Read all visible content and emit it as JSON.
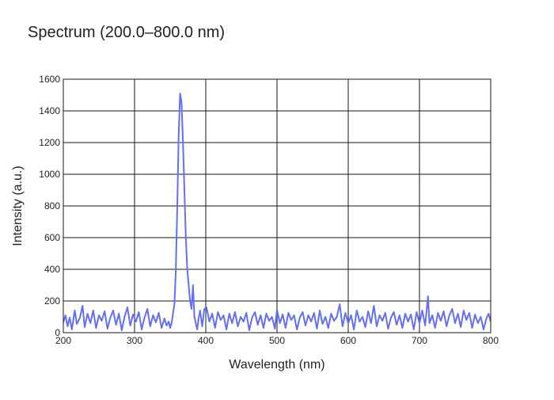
{
  "chart_data": {
    "type": "line",
    "title": "Spectrum (200.0–800.0 nm)",
    "xlabel": "Wavelength (nm)",
    "ylabel": "Intensity (a.u.)",
    "xlim": [
      200,
      800
    ],
    "ylim": [
      0,
      1600
    ],
    "x_ticks": [
      200,
      300,
      400,
      500,
      600,
      700,
      800
    ],
    "y_ticks": [
      0,
      200,
      400,
      600,
      800,
      1000,
      1200,
      1400,
      1600
    ],
    "grid": true,
    "legend": "none",
    "series": [
      {
        "color": "#636efa",
        "points": [
          [
            200,
            65
          ],
          [
            203,
            110
          ],
          [
            206,
            40
          ],
          [
            209,
            95
          ],
          [
            212,
            20
          ],
          [
            216,
            140
          ],
          [
            219,
            55
          ],
          [
            223,
            90
          ],
          [
            227,
            170
          ],
          [
            230,
            35
          ],
          [
            234,
            120
          ],
          [
            238,
            60
          ],
          [
            242,
            140
          ],
          [
            246,
            30
          ],
          [
            250,
            110
          ],
          [
            254,
            75
          ],
          [
            258,
            135
          ],
          [
            262,
            25
          ],
          [
            266,
            95
          ],
          [
            270,
            140
          ],
          [
            274,
            50
          ],
          [
            278,
            120
          ],
          [
            282,
            15
          ],
          [
            286,
            100
          ],
          [
            290,
            160
          ],
          [
            294,
            45
          ],
          [
            298,
            115
          ],
          [
            302,
            70
          ],
          [
            306,
            130
          ],
          [
            310,
            20
          ],
          [
            314,
            95
          ],
          [
            318,
            150
          ],
          [
            322,
            40
          ],
          [
            326,
            110
          ],
          [
            330,
            65
          ],
          [
            334,
            125
          ],
          [
            338,
            30
          ],
          [
            342,
            90
          ],
          [
            345,
            45
          ],
          [
            348,
            70
          ],
          [
            350,
            30
          ],
          [
            352,
            60
          ],
          [
            354,
            120
          ],
          [
            356,
            180
          ],
          [
            358,
            400
          ],
          [
            360,
            800
          ],
          [
            362,
            1250
          ],
          [
            364,
            1510
          ],
          [
            366,
            1450
          ],
          [
            368,
            1200
          ],
          [
            370,
            900
          ],
          [
            372,
            600
          ],
          [
            374,
            400
          ],
          [
            376,
            300
          ],
          [
            378,
            200
          ],
          [
            380,
            150
          ],
          [
            382,
            300
          ],
          [
            384,
            100
          ],
          [
            386,
            60
          ],
          [
            388,
            20
          ],
          [
            390,
            90
          ],
          [
            392,
            140
          ],
          [
            395,
            40
          ],
          [
            398,
            150
          ],
          [
            401,
            160
          ],
          [
            405,
            70
          ],
          [
            409,
            120
          ],
          [
            413,
            30
          ],
          [
            417,
            130
          ],
          [
            421,
            80
          ],
          [
            425,
            110
          ],
          [
            429,
            20
          ],
          [
            433,
            120
          ],
          [
            437,
            60
          ],
          [
            441,
            130
          ],
          [
            445,
            40
          ],
          [
            449,
            100
          ],
          [
            453,
            70
          ],
          [
            457,
            125
          ],
          [
            461,
            15
          ],
          [
            465,
            95
          ],
          [
            469,
            130
          ],
          [
            473,
            50
          ],
          [
            477,
            110
          ],
          [
            481,
            30
          ],
          [
            485,
            120
          ],
          [
            489,
            75
          ],
          [
            493,
            100
          ],
          [
            497,
            25
          ],
          [
            500,
            145
          ],
          [
            504,
            60
          ],
          [
            508,
            115
          ],
          [
            512,
            30
          ],
          [
            516,
            125
          ],
          [
            520,
            80
          ],
          [
            524,
            110
          ],
          [
            528,
            20
          ],
          [
            532,
            95
          ],
          [
            536,
            130
          ],
          [
            540,
            45
          ],
          [
            544,
            110
          ],
          [
            548,
            70
          ],
          [
            552,
            125
          ],
          [
            556,
            25
          ],
          [
            560,
            140
          ],
          [
            564,
            55
          ],
          [
            568,
            100
          ],
          [
            572,
            30
          ],
          [
            576,
            120
          ],
          [
            580,
            75
          ],
          [
            584,
            100
          ],
          [
            588,
            180
          ],
          [
            592,
            40
          ],
          [
            596,
            125
          ],
          [
            600,
            60
          ],
          [
            604,
            110
          ],
          [
            608,
            20
          ],
          [
            612,
            140
          ],
          [
            616,
            70
          ],
          [
            620,
            100
          ],
          [
            624,
            35
          ],
          [
            628,
            135
          ],
          [
            632,
            60
          ],
          [
            636,
            170
          ],
          [
            640,
            40
          ],
          [
            644,
            110
          ],
          [
            648,
            75
          ],
          [
            652,
            125
          ],
          [
            656,
            25
          ],
          [
            660,
            95
          ],
          [
            664,
            130
          ],
          [
            668,
            50
          ],
          [
            672,
            110
          ],
          [
            676,
            30
          ],
          [
            680,
            120
          ],
          [
            684,
            70
          ],
          [
            688,
            115
          ],
          [
            692,
            20
          ],
          [
            696,
            130
          ],
          [
            700,
            60
          ],
          [
            704,
            140
          ],
          [
            708,
            45
          ],
          [
            712,
            230
          ],
          [
            714,
            60
          ],
          [
            718,
            110
          ],
          [
            722,
            30
          ],
          [
            726,
            125
          ],
          [
            730,
            75
          ],
          [
            734,
            135
          ],
          [
            738,
            40
          ],
          [
            742,
            110
          ],
          [
            746,
            150
          ],
          [
            750,
            60
          ],
          [
            754,
            120
          ],
          [
            758,
            35
          ],
          [
            762,
            140
          ],
          [
            766,
            80
          ],
          [
            770,
            125
          ],
          [
            774,
            30
          ],
          [
            778,
            115
          ],
          [
            782,
            60
          ],
          [
            786,
            100
          ],
          [
            790,
            20
          ],
          [
            794,
            90
          ],
          [
            797,
            120
          ],
          [
            800,
            70
          ]
        ]
      }
    ]
  }
}
